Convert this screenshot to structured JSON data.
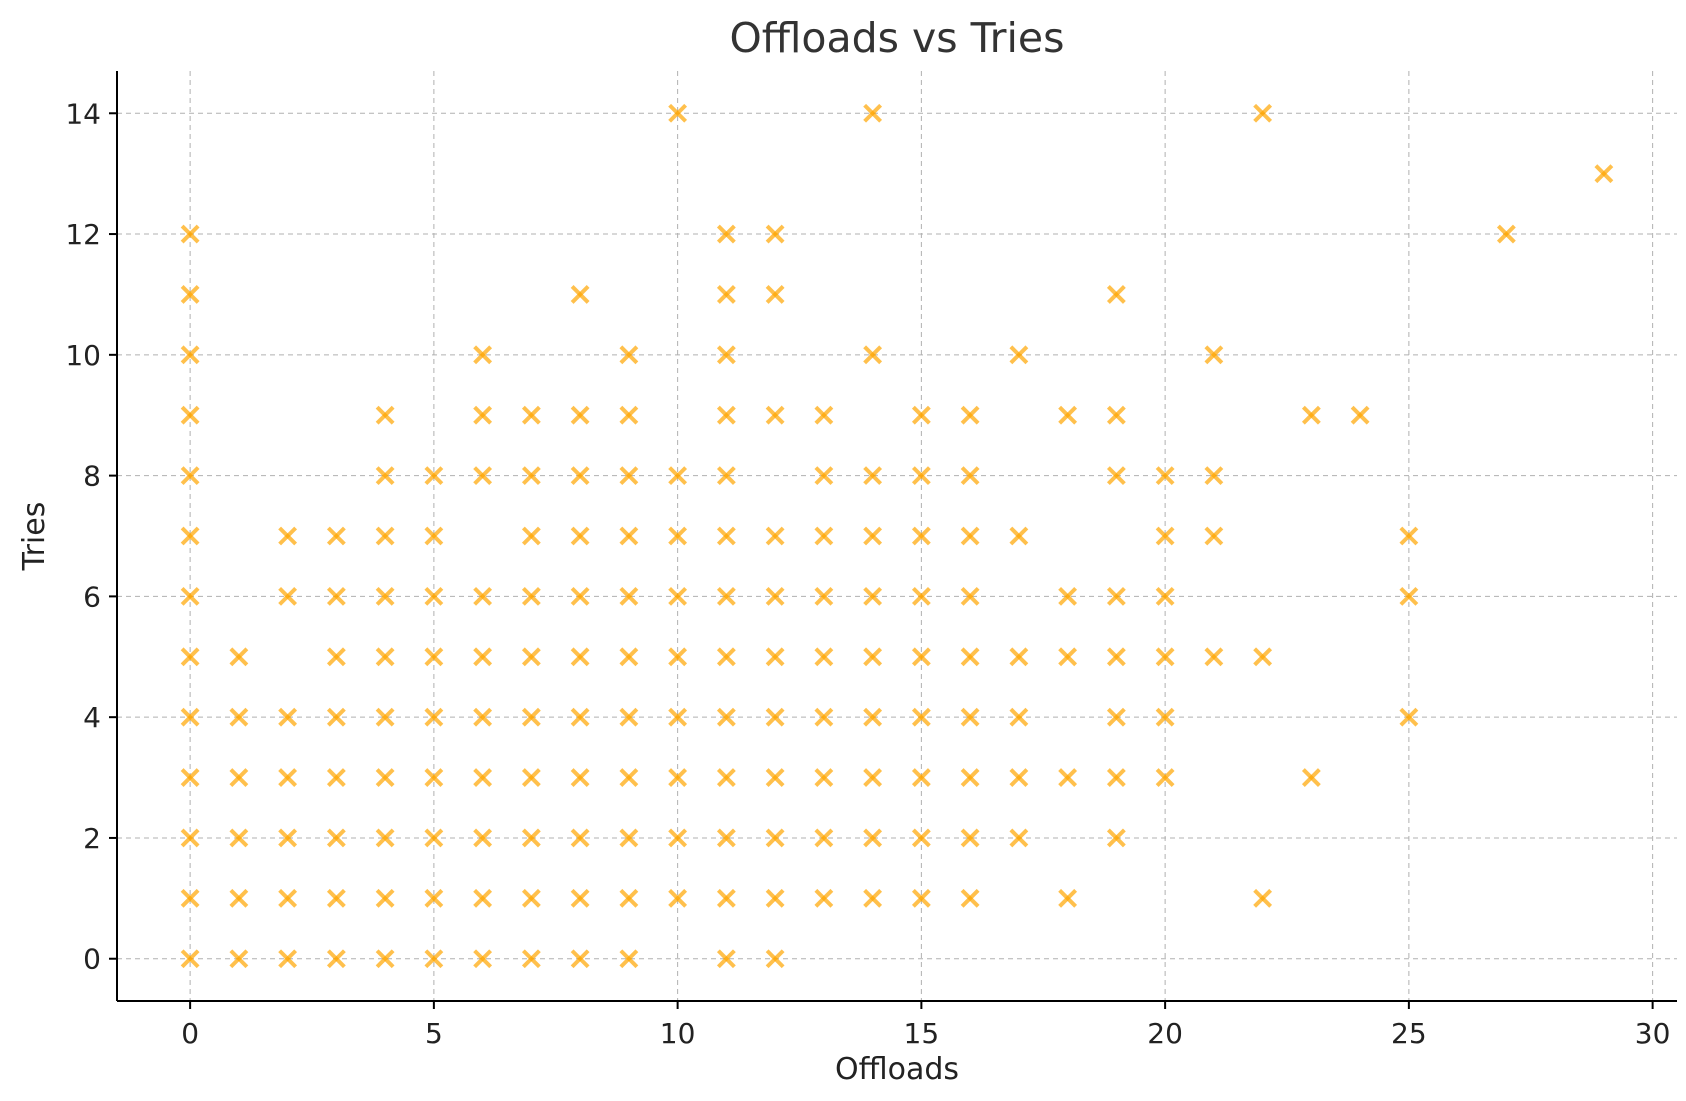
{
  "chart_data": {
    "type": "scatter",
    "title": "Offloads vs Tries",
    "xlabel": "Offloads",
    "ylabel": "Tries",
    "xlim": [
      -1.5,
      30.5
    ],
    "ylim": [
      -0.7,
      14.7
    ],
    "xticks": [
      0,
      5,
      10,
      15,
      20,
      25,
      30
    ],
    "yticks": [
      0,
      2,
      4,
      6,
      8,
      10,
      12,
      14
    ],
    "grid": true,
    "marker": "x",
    "color": "#FFA500",
    "opacity": 0.7,
    "series": [
      {
        "points": [
          [
            0,
            0
          ],
          [
            0,
            1
          ],
          [
            0,
            2
          ],
          [
            0,
            3
          ],
          [
            0,
            4
          ],
          [
            0,
            5
          ],
          [
            0,
            6
          ],
          [
            0,
            7
          ],
          [
            0,
            8
          ],
          [
            0,
            9
          ],
          [
            0,
            10
          ],
          [
            0,
            11
          ],
          [
            0,
            12
          ],
          [
            1,
            0
          ],
          [
            1,
            1
          ],
          [
            1,
            2
          ],
          [
            1,
            3
          ],
          [
            1,
            4
          ],
          [
            1,
            5
          ],
          [
            2,
            0
          ],
          [
            2,
            1
          ],
          [
            2,
            2
          ],
          [
            2,
            3
          ],
          [
            2,
            4
          ],
          [
            2,
            6
          ],
          [
            2,
            7
          ],
          [
            3,
            0
          ],
          [
            3,
            1
          ],
          [
            3,
            2
          ],
          [
            3,
            3
          ],
          [
            3,
            4
          ],
          [
            3,
            5
          ],
          [
            3,
            6
          ],
          [
            3,
            7
          ],
          [
            4,
            0
          ],
          [
            4,
            1
          ],
          [
            4,
            2
          ],
          [
            4,
            3
          ],
          [
            4,
            4
          ],
          [
            4,
            5
          ],
          [
            4,
            6
          ],
          [
            4,
            7
          ],
          [
            4,
            8
          ],
          [
            4,
            9
          ],
          [
            5,
            0
          ],
          [
            5,
            1
          ],
          [
            5,
            2
          ],
          [
            5,
            3
          ],
          [
            5,
            4
          ],
          [
            5,
            5
          ],
          [
            5,
            6
          ],
          [
            5,
            7
          ],
          [
            5,
            8
          ],
          [
            6,
            0
          ],
          [
            6,
            1
          ],
          [
            6,
            2
          ],
          [
            6,
            3
          ],
          [
            6,
            4
          ],
          [
            6,
            5
          ],
          [
            6,
            6
          ],
          [
            6,
            8
          ],
          [
            6,
            9
          ],
          [
            6,
            10
          ],
          [
            7,
            0
          ],
          [
            7,
            1
          ],
          [
            7,
            2
          ],
          [
            7,
            3
          ],
          [
            7,
            4
          ],
          [
            7,
            5
          ],
          [
            7,
            6
          ],
          [
            7,
            7
          ],
          [
            7,
            8
          ],
          [
            7,
            9
          ],
          [
            8,
            0
          ],
          [
            8,
            1
          ],
          [
            8,
            2
          ],
          [
            8,
            3
          ],
          [
            8,
            4
          ],
          [
            8,
            5
          ],
          [
            8,
            6
          ],
          [
            8,
            7
          ],
          [
            8,
            8
          ],
          [
            8,
            9
          ],
          [
            8,
            11
          ],
          [
            9,
            0
          ],
          [
            9,
            1
          ],
          [
            9,
            2
          ],
          [
            9,
            3
          ],
          [
            9,
            4
          ],
          [
            9,
            5
          ],
          [
            9,
            6
          ],
          [
            9,
            7
          ],
          [
            9,
            8
          ],
          [
            9,
            9
          ],
          [
            9,
            10
          ],
          [
            10,
            1
          ],
          [
            10,
            2
          ],
          [
            10,
            3
          ],
          [
            10,
            4
          ],
          [
            10,
            5
          ],
          [
            10,
            6
          ],
          [
            10,
            7
          ],
          [
            10,
            8
          ],
          [
            10,
            14
          ],
          [
            11,
            0
          ],
          [
            11,
            1
          ],
          [
            11,
            2
          ],
          [
            11,
            3
          ],
          [
            11,
            4
          ],
          [
            11,
            5
          ],
          [
            11,
            6
          ],
          [
            11,
            7
          ],
          [
            11,
            8
          ],
          [
            11,
            9
          ],
          [
            11,
            10
          ],
          [
            11,
            11
          ],
          [
            11,
            12
          ],
          [
            12,
            0
          ],
          [
            12,
            1
          ],
          [
            12,
            2
          ],
          [
            12,
            3
          ],
          [
            12,
            4
          ],
          [
            12,
            5
          ],
          [
            12,
            6
          ],
          [
            12,
            7
          ],
          [
            12,
            9
          ],
          [
            12,
            11
          ],
          [
            12,
            12
          ],
          [
            13,
            1
          ],
          [
            13,
            2
          ],
          [
            13,
            3
          ],
          [
            13,
            4
          ],
          [
            13,
            5
          ],
          [
            13,
            6
          ],
          [
            13,
            7
          ],
          [
            13,
            8
          ],
          [
            13,
            9
          ],
          [
            14,
            1
          ],
          [
            14,
            2
          ],
          [
            14,
            3
          ],
          [
            14,
            4
          ],
          [
            14,
            5
          ],
          [
            14,
            6
          ],
          [
            14,
            7
          ],
          [
            14,
            8
          ],
          [
            14,
            10
          ],
          [
            14,
            14
          ],
          [
            15,
            1
          ],
          [
            15,
            2
          ],
          [
            15,
            3
          ],
          [
            15,
            4
          ],
          [
            15,
            5
          ],
          [
            15,
            6
          ],
          [
            15,
            7
          ],
          [
            15,
            8
          ],
          [
            15,
            9
          ],
          [
            16,
            1
          ],
          [
            16,
            2
          ],
          [
            16,
            3
          ],
          [
            16,
            4
          ],
          [
            16,
            5
          ],
          [
            16,
            6
          ],
          [
            16,
            7
          ],
          [
            16,
            8
          ],
          [
            16,
            9
          ],
          [
            17,
            2
          ],
          [
            17,
            3
          ],
          [
            17,
            4
          ],
          [
            17,
            5
          ],
          [
            17,
            7
          ],
          [
            17,
            10
          ],
          [
            18,
            1
          ],
          [
            18,
            3
          ],
          [
            18,
            5
          ],
          [
            18,
            6
          ],
          [
            18,
            9
          ],
          [
            19,
            2
          ],
          [
            19,
            3
          ],
          [
            19,
            4
          ],
          [
            19,
            5
          ],
          [
            19,
            6
          ],
          [
            19,
            8
          ],
          [
            19,
            9
          ],
          [
            19,
            11
          ],
          [
            20,
            3
          ],
          [
            20,
            4
          ],
          [
            20,
            5
          ],
          [
            20,
            6
          ],
          [
            20,
            7
          ],
          [
            20,
            8
          ],
          [
            21,
            5
          ],
          [
            21,
            7
          ],
          [
            21,
            8
          ],
          [
            21,
            10
          ],
          [
            22,
            1
          ],
          [
            22,
            5
          ],
          [
            22,
            14
          ],
          [
            23,
            3
          ],
          [
            23,
            9
          ],
          [
            24,
            9
          ],
          [
            25,
            4
          ],
          [
            25,
            6
          ],
          [
            25,
            7
          ],
          [
            27,
            12
          ],
          [
            29,
            13
          ]
        ]
      }
    ]
  }
}
